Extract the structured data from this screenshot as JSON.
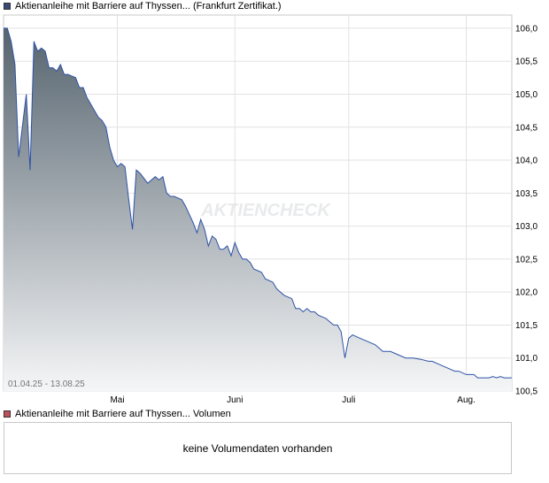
{
  "price_chart": {
    "legend": "Aktienanleihe mit Barriere auf Thyssen... (Frankfurt Zertifikat.)",
    "legend_color": "#3a4a78",
    "date_range": "01.04.25 - 13.08.25",
    "watermark": "AKTIENCHECK"
  },
  "volume_chart": {
    "legend": "Aktienanleihe mit Barriere auf Thyssen... Volumen",
    "legend_color": "#c0505a",
    "message": "keine Volumendaten vorhanden"
  },
  "chart_data": {
    "type": "area",
    "ylim": [
      100.5,
      106.2
    ],
    "yticks": [
      "106,0",
      "105,5",
      "105,0",
      "104,5",
      "104,0",
      "103,5",
      "103,0",
      "102,5",
      "102,0",
      "101,5",
      "101,0",
      "100,5"
    ],
    "ytick_values": [
      106.0,
      105.5,
      105.0,
      104.5,
      104.0,
      103.5,
      103.0,
      102.5,
      102.0,
      101.5,
      101.0,
      100.5
    ],
    "xlim": [
      "2025-04-01",
      "2025-08-13"
    ],
    "xticks": [
      {
        "label": "Mai",
        "date": "2025-05-01"
      },
      {
        "label": "Juni",
        "date": "2025-06-01"
      },
      {
        "label": "Juli",
        "date": "2025-07-01"
      },
      {
        "label": "Aug.",
        "date": "2025-08-01"
      }
    ],
    "grid": true,
    "line_color": "#2d52a8",
    "fill_top_color": "#56646f",
    "fill_bottom_color": "#f5f6f7",
    "x": [
      "2025-04-01",
      "2025-04-02",
      "2025-04-03",
      "2025-04-04",
      "2025-04-05",
      "2025-04-07",
      "2025-04-08",
      "2025-04-09",
      "2025-04-10",
      "2025-04-11",
      "2025-04-12",
      "2025-04-13",
      "2025-04-14",
      "2025-04-15",
      "2025-04-16",
      "2025-04-17",
      "2025-04-18",
      "2025-04-20",
      "2025-04-21",
      "2025-04-22",
      "2025-04-23",
      "2025-04-25",
      "2025-04-26",
      "2025-04-27",
      "2025-04-28",
      "2025-04-29",
      "2025-04-30",
      "2025-05-01",
      "2025-05-02",
      "2025-05-03",
      "2025-05-04",
      "2025-05-05",
      "2025-05-06",
      "2025-05-07",
      "2025-05-09",
      "2025-05-11",
      "2025-05-12",
      "2025-05-13",
      "2025-05-14",
      "2025-05-15",
      "2025-05-16",
      "2025-05-18",
      "2025-05-19",
      "2025-05-21",
      "2025-05-22",
      "2025-05-23",
      "2025-05-24",
      "2025-05-25",
      "2025-05-26",
      "2025-05-27",
      "2025-05-28",
      "2025-05-29",
      "2025-05-30",
      "2025-05-31",
      "2025-06-01",
      "2025-06-02",
      "2025-06-03",
      "2025-06-04",
      "2025-06-05",
      "2025-06-06",
      "2025-06-08",
      "2025-06-09",
      "2025-06-11",
      "2025-06-12",
      "2025-06-13",
      "2025-06-14",
      "2025-06-16",
      "2025-06-17",
      "2025-06-18",
      "2025-06-19",
      "2025-06-20",
      "2025-06-21",
      "2025-06-22",
      "2025-06-23",
      "2025-06-25",
      "2025-06-26",
      "2025-06-27",
      "2025-06-28",
      "2025-06-29",
      "2025-06-30",
      "2025-07-01",
      "2025-07-02",
      "2025-07-04",
      "2025-07-06",
      "2025-07-08",
      "2025-07-09",
      "2025-07-10",
      "2025-07-12",
      "2025-07-14",
      "2025-07-16",
      "2025-07-18",
      "2025-07-20",
      "2025-07-22",
      "2025-07-23",
      "2025-07-25",
      "2025-07-27",
      "2025-07-29",
      "2025-07-30",
      "2025-08-01",
      "2025-08-03",
      "2025-08-04",
      "2025-08-05",
      "2025-08-07",
      "2025-08-08",
      "2025-08-09",
      "2025-08-10",
      "2025-08-11",
      "2025-08-12",
      "2025-08-13"
    ],
    "values": [
      106.0,
      106.0,
      105.8,
      105.45,
      104.05,
      105.0,
      103.85,
      105.8,
      105.65,
      105.7,
      105.65,
      105.4,
      105.4,
      105.35,
      105.45,
      105.3,
      105.3,
      105.25,
      105.1,
      105.1,
      104.95,
      104.75,
      104.65,
      104.6,
      104.5,
      104.2,
      104.0,
      103.9,
      103.95,
      103.9,
      103.4,
      102.95,
      103.85,
      103.8,
      103.65,
      103.75,
      103.7,
      103.75,
      103.5,
      103.45,
      103.45,
      103.4,
      103.3,
      103.05,
      102.9,
      103.1,
      102.95,
      102.7,
      102.85,
      102.8,
      102.65,
      102.65,
      102.7,
      102.55,
      102.75,
      102.6,
      102.5,
      102.5,
      102.45,
      102.35,
      102.3,
      102.2,
      102.15,
      102.05,
      102.0,
      101.95,
      101.9,
      101.75,
      101.75,
      101.7,
      101.75,
      101.7,
      101.7,
      101.65,
      101.6,
      101.55,
      101.5,
      101.5,
      101.4,
      101.0,
      101.3,
      101.35,
      101.3,
      101.25,
      101.2,
      101.15,
      101.1,
      101.1,
      101.05,
      101.0,
      101.0,
      100.98,
      100.95,
      100.95,
      100.9,
      100.85,
      100.8,
      100.8,
      100.75,
      100.75,
      100.7,
      100.7,
      100.7,
      100.72,
      100.7,
      100.72,
      100.7,
      100.7,
      100.7
    ]
  }
}
